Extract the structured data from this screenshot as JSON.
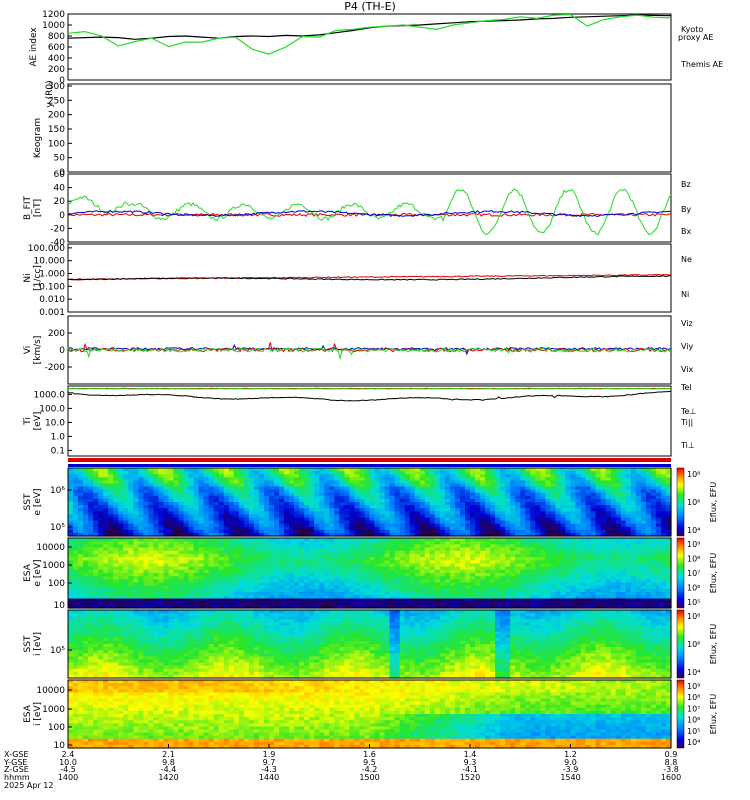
{
  "title": "P4 (TH-E)",
  "colors": {
    "black": "#000000",
    "green": "#22dd22",
    "red": "#dd0000",
    "blue": "#0000cc"
  },
  "chart_data": [
    {
      "type": "line",
      "panel": "ae",
      "ylabel": "AE index",
      "ylim": [
        0,
        1200
      ],
      "yticks": [
        "0",
        "200",
        "400",
        "600",
        "800",
        "1000",
        "1200"
      ],
      "series": [
        {
          "name": "Themis AE",
          "color": "black",
          "values": [
            760,
            770,
            780,
            770,
            740,
            760,
            790,
            800,
            780,
            760,
            790,
            800,
            790,
            810,
            800,
            820,
            860,
            900,
            950,
            980,
            990,
            1000,
            1020,
            1040,
            1060,
            1070,
            1080,
            1090,
            1110,
            1120,
            1140,
            1150,
            1160,
            1170,
            1180,
            1175,
            1170
          ]
        },
        {
          "name": "Kyoto proxy AE",
          "color": "green",
          "values": [
            850,
            880,
            800,
            620,
            700,
            760,
            610,
            690,
            690,
            760,
            780,
            560,
            470,
            600,
            790,
            780,
            900,
            920,
            960,
            980,
            1000,
            960,
            920,
            1000,
            1040,
            1080,
            1100,
            1150,
            1120,
            1180,
            1190,
            980,
            1100,
            1150,
            1180,
            1140,
            1130
          ]
        }
      ]
    },
    {
      "type": "line",
      "panel": "keogram",
      "ylabel": "Keogram",
      "ylabel2": "y (R0)",
      "ylim": [
        0,
        300
      ],
      "yticks": [
        "0",
        "50",
        "100",
        "150",
        "200",
        "250",
        "300"
      ]
    },
    {
      "type": "line",
      "panel": "bfield",
      "ylabel": "B_FIT",
      "units": "[nT]",
      "ylim": [
        -40,
        60
      ],
      "yticks": [
        "-40",
        "-20",
        "0",
        "20",
        "40",
        "60"
      ],
      "series": [
        {
          "name": "Bz",
          "color": "red"
        },
        {
          "name": "By",
          "color": "green"
        },
        {
          "name": "Bx",
          "color": "blue"
        }
      ]
    },
    {
      "type": "line",
      "panel": "density",
      "ylabel": "Ni",
      "units": "[1/cc]",
      "scale": "log",
      "yticks": [
        "0.001",
        "0.010",
        "0.100",
        "1.000",
        "10.000",
        "100.000"
      ],
      "series": [
        {
          "name": "Ne",
          "color": "red"
        },
        {
          "name": "Ni",
          "color": "black"
        }
      ]
    },
    {
      "type": "line",
      "panel": "velocity",
      "ylabel": "Vi",
      "units": "[km/s]",
      "ylim": [
        -400,
        400
      ],
      "yticks": [
        "-200",
        "0",
        "200"
      ],
      "series": [
        {
          "name": "Viz",
          "color": "red"
        },
        {
          "name": "Viy",
          "color": "green"
        },
        {
          "name": "Vix",
          "color": "blue"
        }
      ]
    },
    {
      "type": "line",
      "panel": "temperature",
      "ylabel": "Ti",
      "units": "[eV]",
      "scale": "log",
      "yticks": [
        "0.1",
        "1.0",
        "10.0",
        "100.0",
        "1000.0"
      ],
      "series": [
        {
          "name": "Tel",
          "color": "black"
        },
        {
          "name": "Te⊥",
          "color": "red"
        },
        {
          "name": "Ti||",
          "color": "green"
        },
        {
          "name": "Ti⊥",
          "color": "blue"
        }
      ]
    },
    {
      "type": "heatmap",
      "panel": "sst_e",
      "ylabel": "SST",
      "ysub": "e",
      "units": "[eV]",
      "yticks": [
        "10⁵",
        "10⁶"
      ],
      "colorbar": {
        "label": "Eflux, EFU",
        "ticks": [
          "10⁸",
          "10⁶",
          "10⁴"
        ]
      }
    },
    {
      "type": "heatmap",
      "panel": "esa_e",
      "ylabel": "ESA",
      "ysub": "e",
      "units": "[eV]",
      "yticks": [
        "10",
        "100",
        "1000",
        "10000"
      ],
      "colorbar": {
        "label": "Eflux, EFU",
        "ticks": [
          "10⁹",
          "10⁸",
          "10⁷",
          "10⁶",
          "10⁵"
        ]
      }
    },
    {
      "type": "heatmap",
      "panel": "sst_i",
      "ylabel": "SST",
      "ysub": "i",
      "units": "[eV]",
      "yticks": [
        "10⁵"
      ],
      "colorbar": {
        "label": "Eflux, EFU",
        "ticks": [
          "10⁸",
          "10⁶",
          "10⁴"
        ]
      }
    },
    {
      "type": "heatmap",
      "panel": "esa_i",
      "ylabel": "ESA",
      "ysub": "i",
      "units": "[eV]",
      "yticks": [
        "10",
        "100",
        "1000",
        "10000"
      ],
      "colorbar": {
        "label": "Eflux, EFU",
        "ticks": [
          "10⁹",
          "10⁸",
          "10⁷",
          "10⁶",
          "10⁵",
          "10⁴"
        ]
      }
    }
  ],
  "xaxis": {
    "row_labels": [
      "X-GSE",
      "Y-GSE",
      "Z-GSE",
      "hhmm",
      "2025 Apr 12"
    ],
    "ticks": [
      {
        "x": "2.4",
        "y": "10.0",
        "z": "-4.5",
        "t": "1400"
      },
      {
        "x": "2.1",
        "y": "9.8",
        "z": "-4.4",
        "t": "1420"
      },
      {
        "x": "1.9",
        "y": "9.7",
        "z": "-4.3",
        "t": "1440"
      },
      {
        "x": "1.6",
        "y": "9.5",
        "z": "-4.2",
        "t": "1500"
      },
      {
        "x": "1.4",
        "y": "9.3",
        "z": "-4.1",
        "t": "1520"
      },
      {
        "x": "1.2",
        "y": "9.0",
        "z": "-3.9",
        "t": "1540"
      },
      {
        "x": "0.9",
        "y": "8.8",
        "z": "-3.8",
        "t": "1600"
      }
    ]
  }
}
